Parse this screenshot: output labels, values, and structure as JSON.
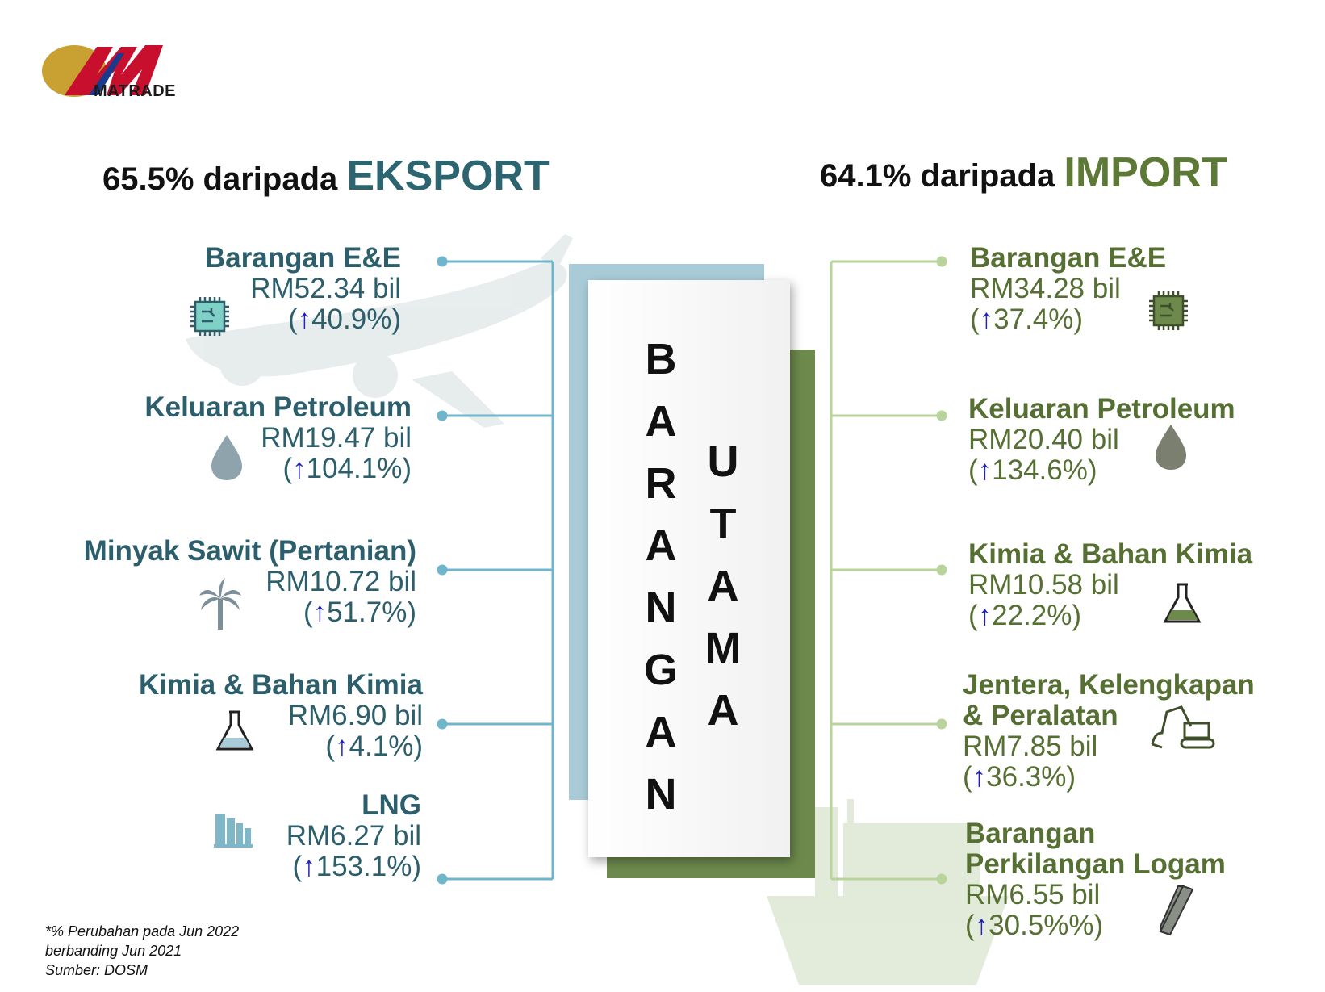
{
  "logo": {
    "text": "MATRADE"
  },
  "export_header": {
    "prefix": "65.5% daripada ",
    "word": "EKSPORT"
  },
  "import_header": {
    "prefix": "64.1% daripada ",
    "word": "IMPORT"
  },
  "center": {
    "col1": [
      "B",
      "A",
      "R",
      "A",
      "N",
      "G",
      "A",
      "N"
    ],
    "col2": [
      "U",
      "T",
      "A",
      "M",
      "A"
    ]
  },
  "arrow_glyph": "↑",
  "exports": [
    {
      "name": "Barangan E&E",
      "value": "RM52.34 bil",
      "pct_open": "(",
      "pct": "40.9%)",
      "icon": "chip-icon"
    },
    {
      "name": "Keluaran Petroleum",
      "value": "RM19.47 bil",
      "pct_open": "(",
      "pct": "104.1%)",
      "icon": "oil-drop-icon"
    },
    {
      "name": "Minyak Sawit (Pertanian)",
      "value": "RM10.72 bil",
      "pct_open": "(",
      "pct": "51.7%)",
      "icon": "palm-tree-icon"
    },
    {
      "name": "Kimia & Bahan Kimia",
      "value": "RM6.90 bil",
      "pct_open": "(",
      "pct": "4.1%)",
      "icon": "flask-icon"
    },
    {
      "name": "LNG",
      "value": "RM6.27 bil",
      "pct_open": "(",
      "pct": "153.1%)",
      "icon": "lng-tanks-icon"
    }
  ],
  "imports": [
    {
      "name": "Barangan E&E",
      "value": "RM34.28 bil",
      "pct_open": "(",
      "pct": "37.4%)",
      "icon": "chip-icon"
    },
    {
      "name": "Keluaran Petroleum",
      "value": "RM20.40 bil",
      "pct_open": "(",
      "pct": "134.6%)",
      "icon": "oil-drop-icon"
    },
    {
      "name": "Kimia & Bahan Kimia",
      "value": "RM10.58 bil",
      "pct_open": "(",
      "pct": "22.2%)",
      "icon": "flask-icon"
    },
    {
      "name": "Jentera, Kelengkapan",
      "name2": "& Peralatan",
      "value": "RM7.85 bil",
      "pct_open": "(",
      "pct": "36.3%)",
      "icon": "excavator-icon"
    },
    {
      "name": "Barangan",
      "name2": "Perkilangan Logam",
      "value": "RM6.55 bil",
      "pct_open": "(",
      "pct": "30.5%%)",
      "icon": "steel-beam-icon"
    }
  ],
  "footnote": {
    "line1": "*% Perubahan pada Jun 2022",
    "line2": "berbanding Jun 2021",
    "line3": "Sumber: DOSM"
  },
  "colors": {
    "export_accent": "#2c6470",
    "import_accent": "#5c7a36",
    "export_line": "#6fb5cc",
    "import_line": "#b9d49a"
  }
}
